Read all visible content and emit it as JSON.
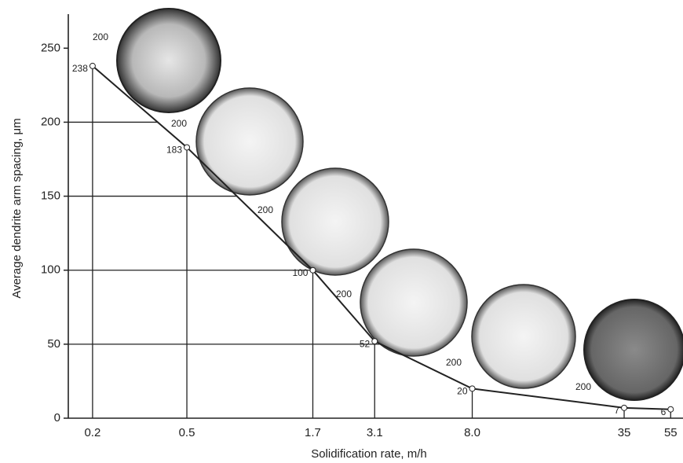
{
  "chart_data": {
    "type": "line",
    "x_label": "Solidification rate, m/h",
    "y_label": "Average dendrite arm spacing, μm",
    "x": [
      0.2,
      0.5,
      1.7,
      3.1,
      8.0,
      35,
      55
    ],
    "series": [
      {
        "color": "#222222",
        "values": [
          238,
          183,
          100,
          52,
          20,
          7,
          6
        ]
      }
    ],
    "x_scale": "log",
    "xlim": [
      0.158,
      62
    ],
    "xticks": [
      0.2,
      0.5,
      1.7,
      3.1,
      {
        "value": 8.0,
        "label": "8.0"
      },
      35,
      55
    ],
    "ylim": [
      0,
      273
    ],
    "yticks": [
      0,
      50,
      100,
      150,
      200,
      250
    ],
    "micrographs": [
      {
        "magnification": "200"
      },
      {
        "magnification": "200"
      },
      {
        "magnification": "200"
      },
      {
        "magnification": "200"
      },
      {
        "magnification": "200"
      },
      {
        "magnification": "200"
      }
    ]
  }
}
